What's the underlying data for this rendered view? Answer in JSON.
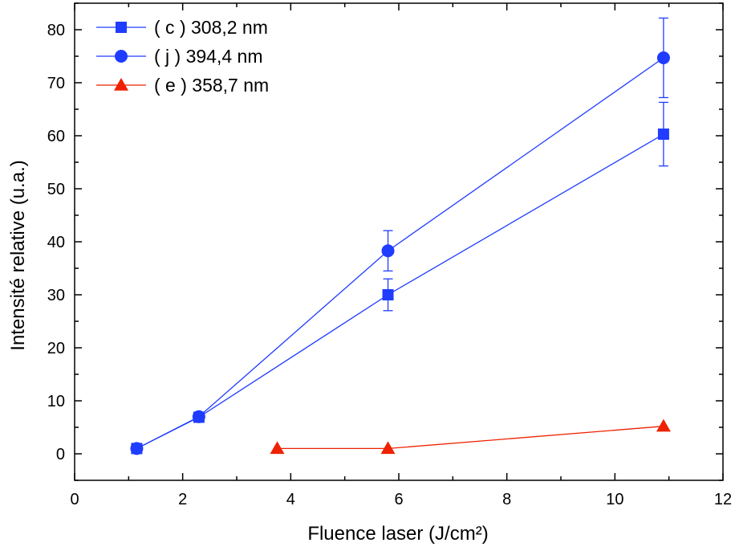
{
  "chart_data": {
    "type": "line",
    "title": "",
    "xlabel": "Fluence laser (J/cm²)",
    "ylabel": "Intensité relative (u.a.)",
    "xlim": [
      0,
      12
    ],
    "ylim": [
      -5,
      85
    ],
    "xticks": [
      0,
      2,
      4,
      6,
      8,
      10,
      12
    ],
    "yticks": [
      0,
      10,
      20,
      30,
      40,
      50,
      60,
      70,
      80
    ],
    "xtick_labels": [
      "0",
      "2",
      "4",
      "6",
      "8",
      "10",
      "12"
    ],
    "ytick_labels": [
      "0",
      "10",
      "20",
      "30",
      "40",
      "50",
      "60",
      "70",
      "80"
    ],
    "grid": false,
    "legend_position": "top-left",
    "series": [
      {
        "name": "( c ) 308,2 nm",
        "color": "#1f3cff",
        "marker": "square",
        "x": [
          1.15,
          2.3,
          5.8,
          10.9
        ],
        "y": [
          1,
          6.9,
          30,
          60.3
        ],
        "err": [
          null,
          null,
          3.0,
          6.0
        ]
      },
      {
        "name": "( j )  394,4 nm",
        "color": "#1f3cff",
        "marker": "circle",
        "x": [
          1.15,
          2.3,
          5.8,
          10.9
        ],
        "y": [
          1,
          7,
          38.3,
          74.7
        ],
        "err": [
          null,
          null,
          3.8,
          7.5
        ]
      },
      {
        "name": "( e ) 358,7 nm",
        "color": "#ee2200",
        "marker": "triangle",
        "x": [
          3.75,
          5.8,
          10.9
        ],
        "y": [
          1,
          1,
          5.2
        ],
        "err": [
          null,
          null,
          null
        ]
      }
    ]
  }
}
